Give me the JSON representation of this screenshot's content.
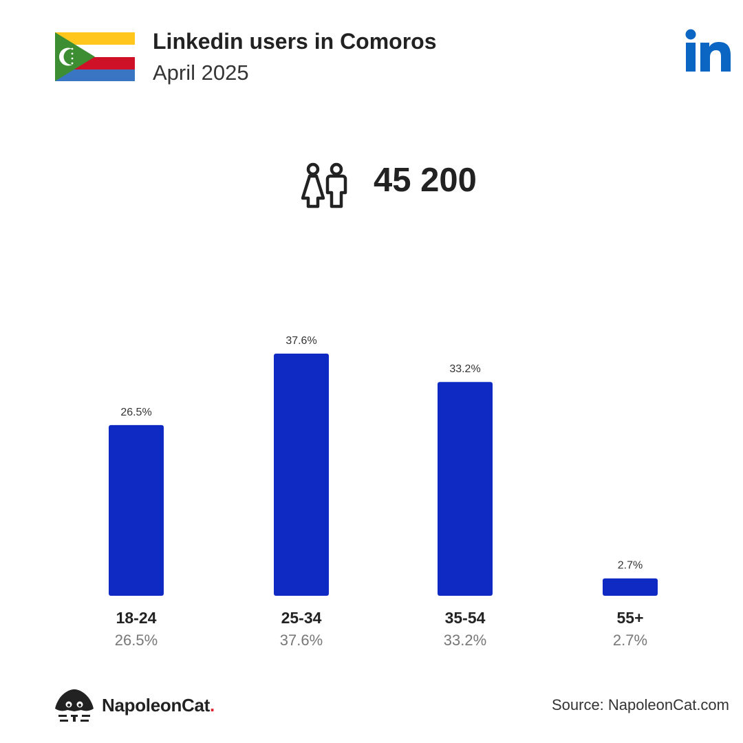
{
  "header": {
    "title": "Linkedin users in Comoros",
    "subtitle": "April 2025"
  },
  "summary": {
    "total_users": "45 200",
    "icon": "users-icon"
  },
  "chart_data": {
    "type": "bar",
    "categories": [
      "18-24",
      "25-34",
      "35-54",
      "55+"
    ],
    "values": [
      26.5,
      37.6,
      33.2,
      2.7
    ],
    "value_labels": [
      "26.5%",
      "37.6%",
      "33.2%",
      "2.7%"
    ],
    "ylim": [
      0,
      37.6
    ],
    "grid": false,
    "bar_color": "#0f2ac2"
  },
  "footer": {
    "brand_name": "NapoleonCat",
    "brand_dot": ".",
    "source": "Source: NapoleonCat.com"
  },
  "colors": {
    "bar": "#0f2ac2",
    "linkedin_blue": "#0a66c2",
    "brand_red": "#e0242f",
    "flag_yellow": "#ffc61e",
    "flag_white": "#ffffff",
    "flag_red": "#ce1126",
    "flag_blue": "#3a75c4",
    "flag_green": "#3d8e33"
  }
}
